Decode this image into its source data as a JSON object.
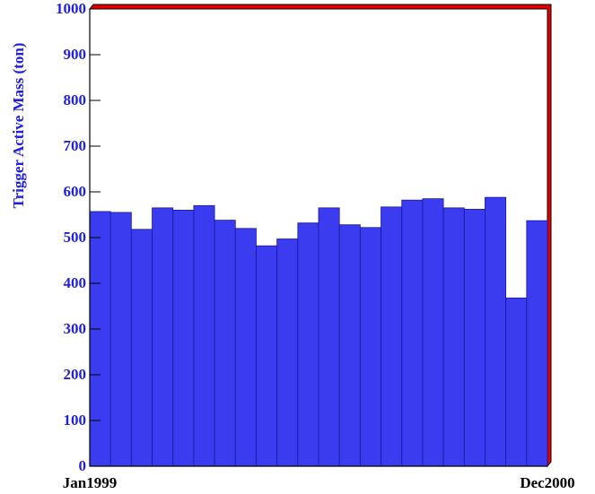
{
  "chart_data": {
    "type": "bar",
    "y_label": "Trigger Active Mass (ton)",
    "categories": [
      "Jan1999",
      null,
      null,
      null,
      null,
      null,
      null,
      null,
      null,
      null,
      null,
      null,
      null,
      null,
      null,
      null,
      null,
      null,
      null,
      null,
      null,
      "Dec2000"
    ],
    "values": [
      557,
      555,
      518,
      565,
      560,
      570,
      538,
      520,
      482,
      497,
      532,
      565,
      528,
      522,
      567,
      582,
      585,
      565,
      562,
      588,
      368,
      537
    ],
    "color": "#3b3bf0",
    "ylim": [
      0,
      1000
    ],
    "yticks": [
      0,
      100,
      200,
      300,
      400,
      500,
      600,
      700,
      800,
      900,
      1000
    ]
  }
}
